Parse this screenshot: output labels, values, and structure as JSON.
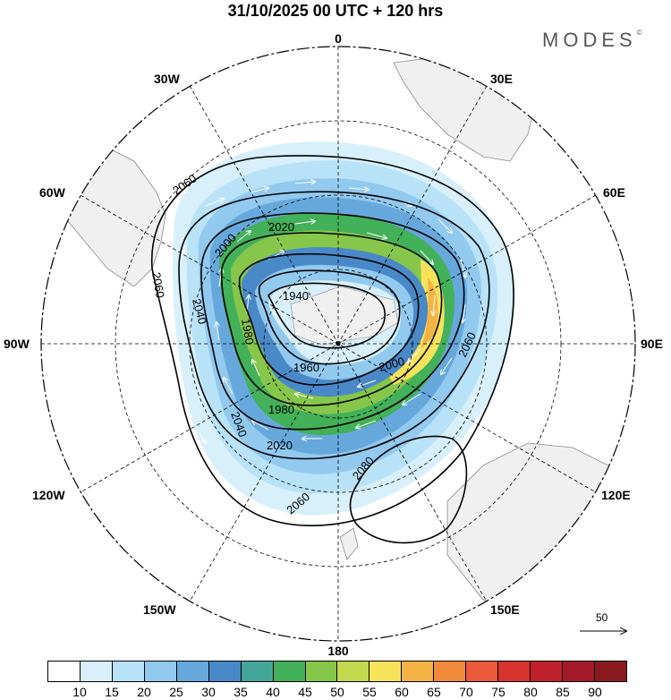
{
  "title": "31/10/2025  00 UTC  + 120 hrs",
  "brand": {
    "name": "MODES",
    "mark": "©"
  },
  "map": {
    "projection": "south-polar-stereographic",
    "lon_labels": {
      "top": "0",
      "top_right": "30E",
      "right_upper": "60E",
      "right": "90E",
      "right_lower": "120E",
      "bottom_right": "150E",
      "bottom": "180",
      "bottom_left": "150W",
      "left_lower": "120W",
      "left": "90W",
      "left_upper": "60W",
      "top_left": "30W"
    },
    "contour_labels": [
      "2060",
      "2020",
      "2000",
      "1940",
      "1980",
      "2060",
      "2040",
      "1960",
      "2000",
      "1980",
      "2040",
      "2020",
      "2060",
      "2080",
      "2060"
    ],
    "vector_reference": {
      "value": "50"
    }
  },
  "colorbar": {
    "ticks": [
      "10",
      "15",
      "20",
      "25",
      "30",
      "35",
      "40",
      "45",
      "50",
      "55",
      "60",
      "65",
      "70",
      "75",
      "80",
      "85",
      "90"
    ],
    "colors": [
      "#ffffff",
      "#d7f0fb",
      "#b8e2f8",
      "#92c9ef",
      "#66a8dc",
      "#4a89c8",
      "#44a69a",
      "#43b05a",
      "#86c64a",
      "#c3d94e",
      "#f7e35a",
      "#f5b344",
      "#f08a3a",
      "#e9593a",
      "#d8342f",
      "#bf202b",
      "#a3192a",
      "#8a1a1f"
    ]
  },
  "colors": {
    "land": "#f0f0f0",
    "coast": "#8a8a8a",
    "contour": "#000000",
    "vector": "#ffffff"
  }
}
